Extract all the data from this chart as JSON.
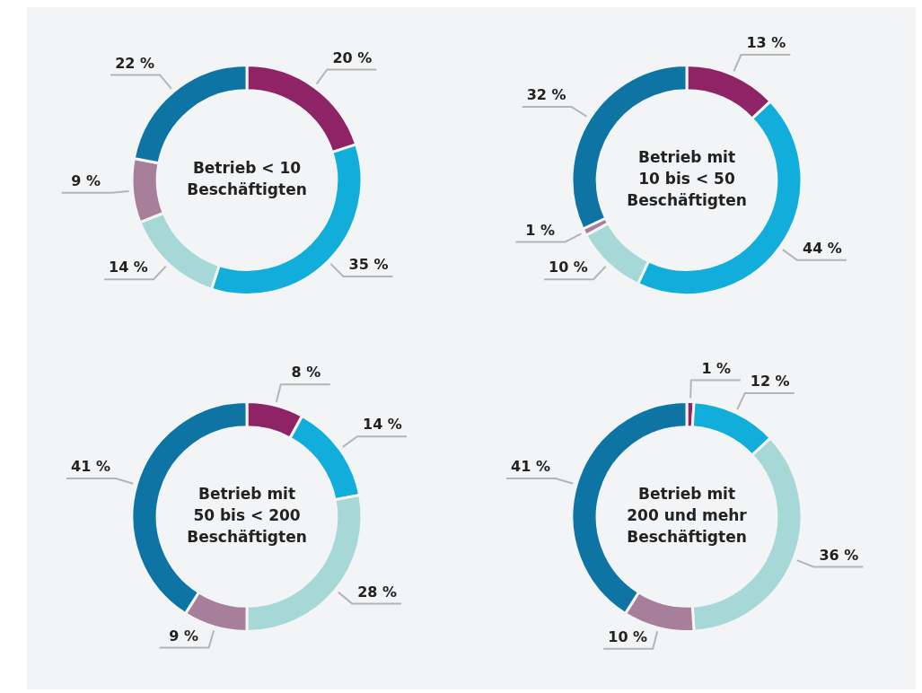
{
  "chart_data": [
    {
      "type": "donut",
      "title": "Betrieb < 10\nBeschäftigten",
      "categories": [
        null,
        null,
        null,
        null,
        null
      ],
      "values": [
        20,
        35,
        14,
        9,
        22
      ],
      "value_labels": [
        "20 %",
        "35 %",
        "14 %",
        "9 %",
        "22 %"
      ],
      "colors": [
        "#8e2466",
        "#12aedb",
        "#a6d8d8",
        "#a87f9b",
        "#0e74a3"
      ],
      "legend": false
    },
    {
      "type": "donut",
      "title": "Betrieb mit\n10 bis < 50\nBeschäftigten",
      "categories": [
        null,
        null,
        null,
        null,
        null
      ],
      "values": [
        13,
        44,
        10,
        1,
        32
      ],
      "value_labels": [
        "13 %",
        "44 %",
        "10 %",
        "1 %",
        "32 %"
      ],
      "colors": [
        "#8e2466",
        "#12aedb",
        "#a6d8d8",
        "#a87f9b",
        "#0e74a3"
      ],
      "legend": false
    },
    {
      "type": "donut",
      "title": "Betrieb mit\n50 bis < 200\nBeschäftigten",
      "categories": [
        null,
        null,
        null,
        null,
        null
      ],
      "values": [
        8,
        14,
        28,
        9,
        41
      ],
      "value_labels": [
        "8 %",
        "14 %",
        "28 %",
        "9 %",
        "41 %"
      ],
      "colors": [
        "#8e2466",
        "#12aedb",
        "#a6d8d8",
        "#a87f9b",
        "#0e74a3"
      ],
      "legend": false
    },
    {
      "type": "donut",
      "title": "Betrieb mit\n200 und mehr\nBeschäftigten",
      "categories": [
        null,
        null,
        null,
        null,
        null
      ],
      "values": [
        1,
        12,
        36,
        10,
        41
      ],
      "value_labels": [
        "1 %",
        "12 %",
        "36 %",
        "10 %",
        "41 %"
      ],
      "colors": [
        "#8e2466",
        "#12aedb",
        "#a6d8d8",
        "#a87f9b",
        "#0e74a3"
      ],
      "legend": false
    }
  ]
}
